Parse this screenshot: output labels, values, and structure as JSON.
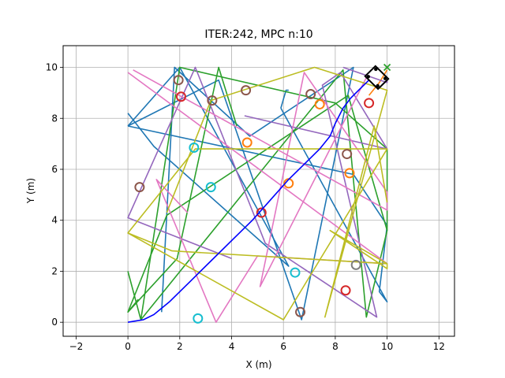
{
  "chart_data": {
    "type": "line",
    "title": "ITER:242, MPC n:10",
    "xlabel": "X (m)",
    "ylabel": "Y (m)",
    "xlim": [
      -2.5,
      12.6
    ],
    "ylim": [
      -0.55,
      10.85
    ],
    "xticks": [
      -2,
      0,
      2,
      4,
      6,
      8,
      10,
      12
    ],
    "yticks": [
      0,
      2,
      4,
      6,
      8,
      10
    ],
    "grid": true,
    "colors": {
      "blue": "#1f77b4",
      "orange": "#ff7f0e",
      "green": "#2ca02c",
      "red": "#d62728",
      "purple": "#9467bd",
      "brown": "#8c564b",
      "pink": "#e377c2",
      "gray": "#7f7f7f",
      "olive": "#bcbd22",
      "cyan": "#17becf",
      "path": "#0000ff",
      "vehicle": "#000000",
      "goal": "#2ca02c"
    },
    "random_lines": [
      {
        "color": "blue",
        "x": [
          0,
          3.5,
          6.7,
          8.7,
          4.7,
          1.8,
          1.3
        ],
        "y": [
          7.7,
          9.5,
          0.1,
          10,
          7.3,
          10,
          0.4
        ]
      },
      {
        "color": "blue",
        "x": [
          0,
          1,
          6.2,
          2,
          0
        ],
        "y": [
          8.2,
          6.9,
          2.2,
          10,
          7.7
        ]
      },
      {
        "color": "blue",
        "x": [
          0,
          8.7,
          10,
          9.7,
          10,
          5.9
        ],
        "y": [
          7.7,
          5.8,
          3.8,
          1.2,
          0.8,
          8.4
        ]
      },
      {
        "color": "blue",
        "x": [
          5.9,
          6.1,
          6.2
        ],
        "y": [
          8.4,
          9.1,
          9.1
        ]
      },
      {
        "color": "orange",
        "x": [
          9.3,
          9.7,
          10
        ],
        "y": [
          8.9,
          9.4,
          9.9
        ]
      },
      {
        "color": "green",
        "x": [
          0,
          1.9,
          3.5,
          4.2
        ],
        "y": [
          0.4,
          2.5,
          10,
          7.7
        ]
      },
      {
        "color": "green",
        "x": [
          0,
          0.5,
          2,
          8,
          10,
          10
        ],
        "y": [
          2,
          0.1,
          10,
          8.6,
          6.8,
          3.6
        ]
      },
      {
        "color": "green",
        "x": [
          0.5,
          8.3,
          9.2,
          10,
          8.5,
          1.5,
          0,
          0.4
        ],
        "y": [
          0.1,
          9.9,
          0.2,
          3.6,
          8.9,
          4.2,
          0.4,
          0.9
        ]
      },
      {
        "color": "purple",
        "x": [
          4,
          0,
          2.6,
          5.3,
          9.6,
          7.5,
          8.2,
          10,
          4.5
        ],
        "y": [
          2.5,
          4.1,
          10,
          3.1,
          0.2,
          9.3,
          9.8,
          6.8,
          8.1
        ]
      },
      {
        "color": "purple",
        "x": [
          8.3,
          10,
          10
        ],
        "y": [
          10,
          9.4,
          9.5
        ]
      },
      {
        "color": "pink",
        "x": [
          0,
          10,
          5,
          3.4,
          1.1,
          2.3
        ],
        "y": [
          9.8,
          2.3,
          2.6,
          0,
          5.6,
          4.3
        ]
      },
      {
        "color": "pink",
        "x": [
          0.2,
          10,
          10,
          6.8,
          5.1,
          9.2
        ],
        "y": [
          9.9,
          4.4,
          5.1,
          9.8,
          1.4,
          9.6
        ]
      },
      {
        "color": "olive",
        "x": [
          1.5,
          3.2,
          7.2,
          10,
          7.6,
          9.5,
          10
        ],
        "y": [
          4.3,
          8.7,
          10,
          9.1,
          0.2,
          7.7,
          4.7
        ]
      },
      {
        "color": "olive",
        "x": [
          0,
          2.6,
          10,
          6,
          0,
          1.7,
          10,
          7.8,
          10,
          10
        ],
        "y": [
          3.5,
          6.8,
          6.8,
          0.1,
          3.5,
          2.8,
          2.3,
          3.6,
          2.1,
          2.3
        ]
      }
    ],
    "obstacles": [
      {
        "color": "red",
        "x": 2.05,
        "y": 8.85
      },
      {
        "color": "red",
        "x": 5.15,
        "y": 4.3
      },
      {
        "color": "red",
        "x": 8.4,
        "y": 1.25
      },
      {
        "color": "red",
        "x": 9.3,
        "y": 8.6
      },
      {
        "color": "orange",
        "x": 4.6,
        "y": 7.05
      },
      {
        "color": "orange",
        "x": 6.2,
        "y": 5.45
      },
      {
        "color": "orange",
        "x": 7.4,
        "y": 8.55
      },
      {
        "color": "orange",
        "x": 8.55,
        "y": 5.85
      },
      {
        "color": "brown",
        "x": 0.45,
        "y": 5.3
      },
      {
        "color": "brown",
        "x": 1.95,
        "y": 9.5
      },
      {
        "color": "brown",
        "x": 3.25,
        "y": 8.7
      },
      {
        "color": "brown",
        "x": 4.55,
        "y": 9.1
      },
      {
        "color": "brown",
        "x": 7.05,
        "y": 8.95
      },
      {
        "color": "brown",
        "x": 8.45,
        "y": 6.6
      },
      {
        "color": "brown",
        "x": 6.65,
        "y": 0.4
      },
      {
        "color": "gray",
        "x": 8.8,
        "y": 2.25
      },
      {
        "color": "cyan",
        "x": 2.55,
        "y": 6.85
      },
      {
        "color": "cyan",
        "x": 3.2,
        "y": 5.3
      },
      {
        "color": "cyan",
        "x": 6.45,
        "y": 1.95
      },
      {
        "color": "cyan",
        "x": 2.7,
        "y": 0.15
      }
    ],
    "path": {
      "color": "path",
      "x": [
        0,
        0.3,
        0.6,
        1.0,
        1.6,
        2.4,
        3.2,
        4.0,
        4.8,
        5.5,
        6.2,
        6.9,
        7.4,
        7.8,
        8.0,
        8.3,
        8.6,
        8.9,
        9.1,
        9.3
      ],
      "y": [
        0,
        0.05,
        0.1,
        0.3,
        0.8,
        1.6,
        2.4,
        3.2,
        4.0,
        4.8,
        5.6,
        6.3,
        6.8,
        7.3,
        7.8,
        8.4,
        8.8,
        9.1,
        9.3,
        9.5
      ]
    },
    "vehicle": {
      "corners_x": [
        9.15,
        9.55,
        10.05,
        9.65
      ],
      "corners_y": [
        9.65,
        10.05,
        9.55,
        9.15
      ],
      "color": "vehicle"
    },
    "goal": {
      "x": 10,
      "y": 10,
      "marker": "x",
      "color": "goal"
    }
  }
}
